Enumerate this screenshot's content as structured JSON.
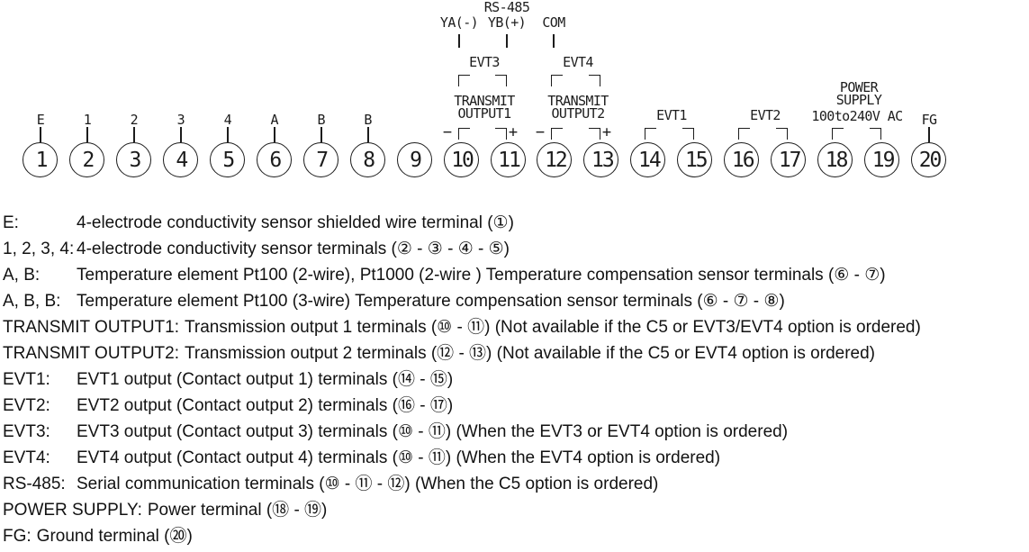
{
  "diagram": {
    "rs485": {
      "title": "RS-485",
      "pins": [
        {
          "label": "YA(-)"
        },
        {
          "label": "YB(+)"
        },
        {
          "label": "COM"
        }
      ]
    },
    "groups": {
      "evt3": "EVT3",
      "evt4": "EVT4",
      "transmit1": [
        "TRANSMIT",
        "OUTPUT1"
      ],
      "transmit2": [
        "TRANSMIT",
        "OUTPUT2"
      ],
      "evt1": "EVT1",
      "evt2": "EVT2",
      "power": [
        "POWER",
        "SUPPLY",
        "100to240V AC"
      ],
      "minus": "−",
      "plus": "+"
    },
    "terminals": [
      {
        "number": "1",
        "label": "E"
      },
      {
        "number": "2",
        "label": "1"
      },
      {
        "number": "3",
        "label": "2"
      },
      {
        "number": "4",
        "label": "3"
      },
      {
        "number": "5",
        "label": "4"
      },
      {
        "number": "6",
        "label": "A"
      },
      {
        "number": "7",
        "label": "B"
      },
      {
        "number": "8",
        "label": "B"
      },
      {
        "number": "9",
        "label": ""
      },
      {
        "number": "10",
        "label": ""
      },
      {
        "number": "11",
        "label": ""
      },
      {
        "number": "12",
        "label": ""
      },
      {
        "number": "13",
        "label": ""
      },
      {
        "number": "14",
        "label": ""
      },
      {
        "number": "15",
        "label": ""
      },
      {
        "number": "16",
        "label": ""
      },
      {
        "number": "17",
        "label": ""
      },
      {
        "number": "18",
        "label": ""
      },
      {
        "number": "19",
        "label": ""
      },
      {
        "number": "20",
        "label": "FG"
      }
    ]
  },
  "legend": {
    "rows": [
      {
        "label": "E:",
        "text": "4-electrode conductivity sensor shielded wire terminal (①)",
        "align": true
      },
      {
        "label": "1, 2, 3, 4:",
        "text": "4-electrode conductivity sensor terminals (② - ③ - ④ - ⑤)",
        "align": true
      },
      {
        "label": "A, B:",
        "text": "Temperature element Pt100 (2-wire), Pt1000 (2-wire ) Temperature compensation sensor terminals (⑥ - ⑦)",
        "align": true
      },
      {
        "label": "A, B, B:",
        "text": "Temperature element Pt100 (3-wire) Temperature compensation sensor terminals (⑥ - ⑦ - ⑧)",
        "align": true
      },
      {
        "label": "TRANSMIT OUTPUT1:",
        "text": "Transmission output 1 terminals (⑩ - ⑪) (Not available if the C5 or EVT3/EVT4 option is ordered)",
        "align": false
      },
      {
        "label": "TRANSMIT OUTPUT2:",
        "text": "Transmission output 2 terminals (⑫ - ⑬) (Not available if the C5 or EVT4 option is ordered)",
        "align": false
      },
      {
        "label": "EVT1:",
        "text": "EVT1 output (Contact output 1) terminals (⑭ - ⑮)",
        "align": true
      },
      {
        "label": "EVT2:",
        "text": "EVT2 output (Contact output 2) terminals (⑯ - ⑰)",
        "align": true
      },
      {
        "label": "EVT3:",
        "text": "EVT3 output (Contact output 3) terminals (⑩ - ⑪) (When the EVT3 or EVT4 option is ordered)",
        "align": true
      },
      {
        "label": "EVT4:",
        "text": "EVT4 output (Contact output 4) terminals (⑩ - ⑪) (When the EVT4 option is ordered)",
        "align": true
      },
      {
        "label": "RS-485:",
        "text": "Serial communication terminals (⑩ - ⑪ - ⑫) (When the C5 option is ordered)",
        "align": true
      },
      {
        "label": "POWER SUPPLY:",
        "text": "Power terminal (⑱ - ⑲)",
        "align": false
      },
      {
        "label": "FG:",
        "text": "Ground terminal (⑳)",
        "align": false
      }
    ]
  }
}
